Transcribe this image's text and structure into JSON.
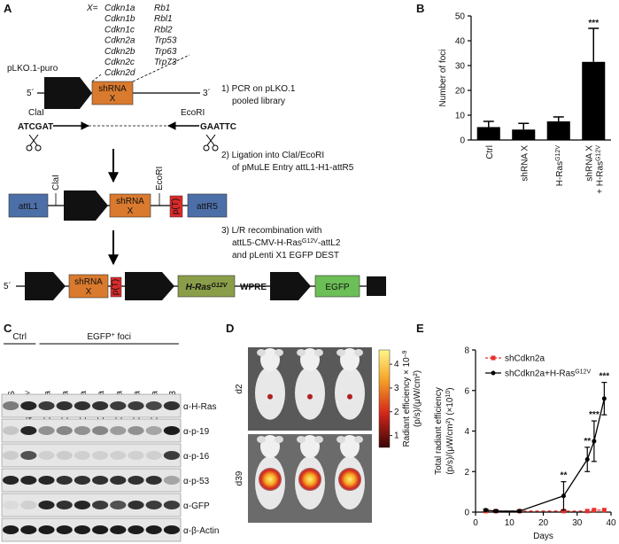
{
  "panels": [
    "A",
    "B",
    "C",
    "D",
    "E"
  ],
  "panel_a": {
    "gene_prefix": "X=",
    "genes": [
      [
        "Cdkn1a",
        "Cdkn1b",
        "Cdkn1c",
        "Cdkn2a",
        "Cdkn2b",
        "Cdkn2c",
        "Cdkn2d"
      ],
      [
        "Rb1",
        "Rbl1",
        "Rbl2",
        "Trp53",
        "Trp63",
        "Trp73"
      ]
    ],
    "vector": "pLKO.1-puro",
    "five": "5´",
    "three": "3´",
    "u6": "U6",
    "shrna": [
      "shRNA",
      "X"
    ],
    "clai": "ClaI",
    "ecori": "EcoRI",
    "clai_seq": "ATCGAT",
    "ecori_seq": "GAATTC",
    "step1": [
      "1) PCR on pLKO.1",
      "pooled library"
    ],
    "step2": [
      "2) Ligation into ClaI/EcoRI",
      "of pMuLE Entry attL1-H1-attR5"
    ],
    "step3": {
      "line1": "3) L/R recombination with",
      "line2": [
        "attL5-CMV-H-Ras",
        "G12V",
        "-attL2"
      ],
      "line3": "and pLenti X1 EGFP DEST"
    },
    "attl1": "attL1",
    "attr5": "attR5",
    "pt": "p(T)",
    "cmv": "CMV",
    "hras": "H-Ras",
    "g12v": "G12V",
    "wpre": "WPRE",
    "pgk": "PGK",
    "egfp": "EGFP"
  },
  "panel_c": {
    "ctrl": "Ctrl",
    "foci": "EGFP",
    "foci_sup": "+",
    "foci_rest": " foci",
    "lanes": [
      "NS",
      {
        "text": "H-Ras",
        "sup": "G12V"
      },
      "Cdkn2a",
      "Cdkn2a",
      "Cdkn2a",
      "Cdkn2a",
      "Cdkn2a",
      "Cdkn2a",
      "Cdkn2a",
      "Trp53"
    ],
    "antibodies": [
      "α-H-Ras",
      "α-p-19",
      "α-p-16",
      "α-p-53",
      "α-GFP",
      "α-β-Actin"
    ]
  },
  "panel_d": {
    "days": [
      "d2",
      "d39"
    ],
    "colorbar": {
      "label": "Radiant efficiency × 10",
      "label_sup": "–9",
      "unit": "(p/s)/(μW/cm²)",
      "ticks": [
        1,
        2,
        3,
        4
      ],
      "lim": [
        0.5,
        4.6
      ]
    }
  },
  "chart_data": [
    {
      "type": "bar",
      "categories": [
        "Ctrl",
        "shRNA X",
        {
          "text": "H-Ras",
          "sup": "G12V"
        },
        {
          "lines": [
            "shRNA X",
            "+ H-Ras"
          ],
          "sup": "G12V"
        }
      ],
      "values": [
        5.2,
        4.2,
        7.5,
        31.5
      ],
      "errors": [
        2.3,
        2.5,
        1.8,
        13.5
      ],
      "significance": [
        null,
        null,
        null,
        "***"
      ],
      "ylabel": "Number of foci",
      "ylim": [
        0,
        50
      ],
      "yticks": [
        0,
        10,
        20,
        30,
        40,
        50
      ],
      "color": "#000000"
    },
    {
      "type": "line",
      "x": [
        3,
        6,
        13,
        26,
        33,
        35,
        38
      ],
      "series": [
        {
          "name": "shCdkn2a",
          "color": "#e8302a",
          "dashed": true,
          "marker": "square",
          "values": [
            0.05,
            0.05,
            0.05,
            0.05,
            0.05,
            0.1,
            0.1
          ]
        },
        {
          "name": "shCdkn2a+H-Ras",
          "name_sup": "G12V",
          "color": "#000000",
          "marker": "circle",
          "values": [
            0.1,
            0.05,
            0.05,
            0.8,
            2.6,
            3.5,
            5.6
          ],
          "errors": [
            0.05,
            0.05,
            0.05,
            0.7,
            0.6,
            1.0,
            0.8
          ],
          "significance": [
            null,
            null,
            null,
            "**",
            "**",
            "***",
            "***"
          ]
        }
      ],
      "xlabel": "Days",
      "ylabel": {
        "line1": "Total radiant efficiency",
        "line2": "(p/s)/(μW/cm²) (×10",
        "sup": "10",
        "end": ")"
      },
      "xlim": [
        0,
        40
      ],
      "xticks": [
        0,
        10,
        20,
        30,
        40
      ],
      "ylim": [
        0,
        8
      ],
      "yticks": [
        0,
        2,
        4,
        6,
        8
      ]
    }
  ]
}
